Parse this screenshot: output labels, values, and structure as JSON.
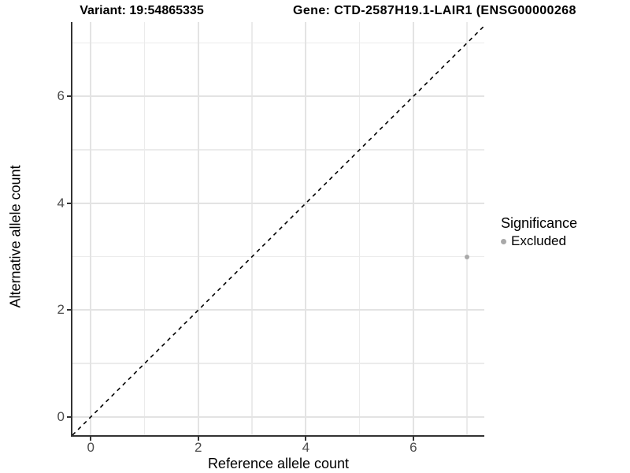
{
  "chart_data": {
    "type": "scatter",
    "titles": [
      "Variant: 19:54865335",
      "Gene: CTD-2587H19.1-LAIR1 (ENSG00000268"
    ],
    "xlabel": "Reference allele count",
    "ylabel": "Alternative allele count",
    "xticks": [
      0,
      2,
      4,
      6
    ],
    "yticks": [
      0,
      2,
      4,
      6
    ],
    "xminor": [
      1,
      3,
      5,
      7
    ],
    "yminor": [
      1,
      3,
      5,
      7
    ],
    "xlim": [
      -0.34,
      7.32
    ],
    "ylim": [
      -0.34,
      7.39
    ],
    "grid": "on",
    "legend_position": "right",
    "reference_line": {
      "kind": "identity-diagonal",
      "style": "dashed",
      "color": "#000000"
    },
    "series": [
      {
        "name": "Excluded",
        "color": "#a9a9a9",
        "points": [
          {
            "x": 7,
            "y": 3
          }
        ]
      }
    ],
    "legend": {
      "title": "Significance",
      "items": [
        {
          "label": "Excluded",
          "color": "#a9a9a9"
        }
      ]
    },
    "colors": {
      "axis_line": "#333333",
      "grid_major": "#e3e3e3",
      "grid_minor": "#ebebeb",
      "tick_label": "#4d4d4d",
      "background": "#ffffff"
    }
  }
}
